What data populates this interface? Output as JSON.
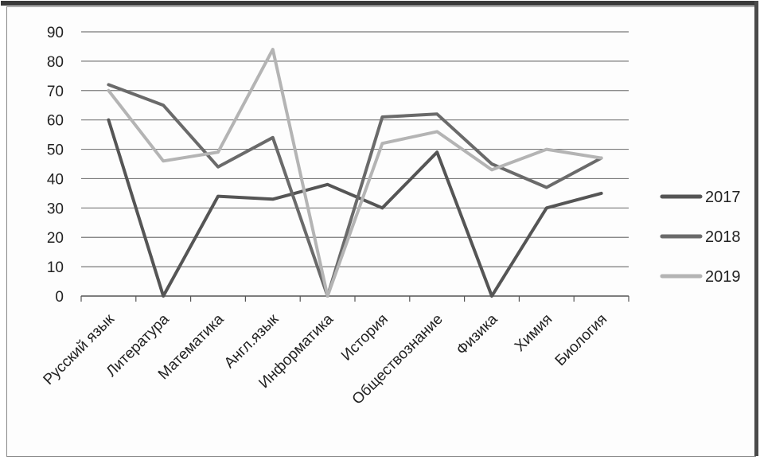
{
  "chart_data": {
    "type": "line",
    "title": "",
    "xlabel": "",
    "ylabel": "",
    "ylim": [
      0,
      90
    ],
    "yticks": [
      0,
      10,
      20,
      30,
      40,
      50,
      60,
      70,
      80,
      90
    ],
    "grid": true,
    "legend_position": "right",
    "categories": [
      "Русский язык",
      "Литература",
      "Математика",
      "Англ.язык",
      "Информатика",
      "История",
      "Обществознание",
      "Физика",
      "Химия",
      "Биология"
    ],
    "series": [
      {
        "name": "2017",
        "color": "#555555",
        "values": [
          60,
          0,
          34,
          33,
          38,
          30,
          49,
          0,
          30,
          35
        ]
      },
      {
        "name": "2018",
        "color": "#6a6a6a",
        "values": [
          72,
          65,
          44,
          54,
          0,
          61,
          62,
          45,
          37,
          47
        ]
      },
      {
        "name": "2019",
        "color": "#b4b4b4",
        "values": [
          70,
          46,
          49,
          84,
          0,
          52,
          56,
          43,
          50,
          47
        ]
      }
    ]
  }
}
